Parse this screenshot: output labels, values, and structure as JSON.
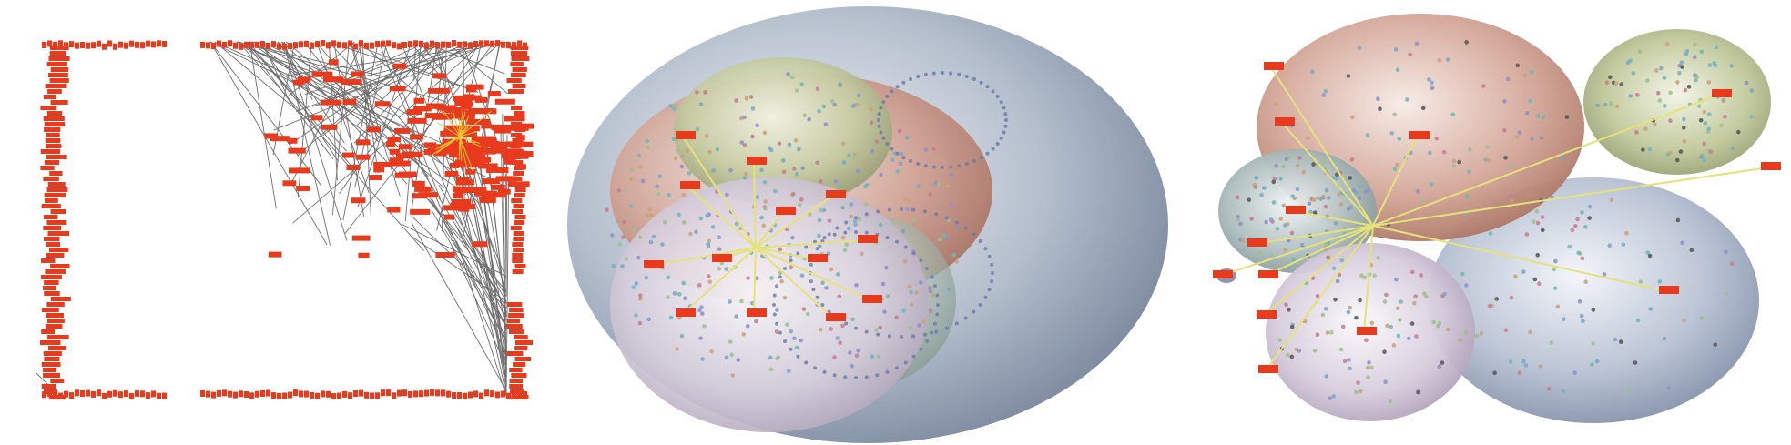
{
  "figure": {
    "panels": [
      {
        "id": "boundary-layout",
        "type": "node-link-diagram",
        "node_color": "#e83a1c",
        "edge_color": "#555555",
        "highlight_color": "#f4c430"
      },
      {
        "id": "nested-sphere-layout",
        "type": "3d-sphere-diagram",
        "sphere_colors": [
          "#9aa6b8",
          "#c98a7c",
          "#b9c28e",
          "#c8bcd0",
          "#9fb3a8"
        ],
        "hub_edge_color": "#e6e27a",
        "node_color": "#e83a1c"
      },
      {
        "id": "cluster-sphere-layout",
        "type": "3d-sphere-diagram",
        "sphere_colors": [
          "#c98a7c",
          "#b9c28e",
          "#9fb3b6",
          "#c8bcd0",
          "#9aa6c2"
        ],
        "hub_edge_color": "#e6e27a",
        "node_color": "#e83a1c"
      }
    ]
  }
}
